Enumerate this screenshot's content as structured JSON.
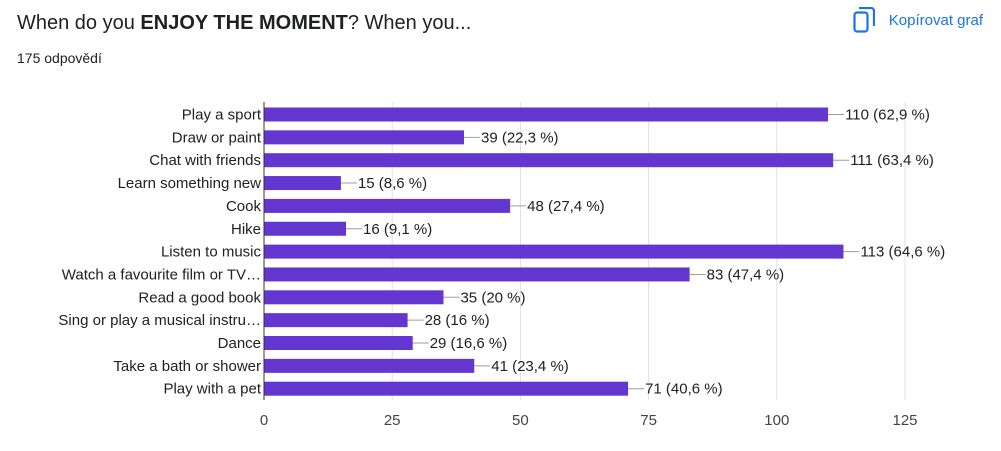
{
  "header": {
    "title_prefix": "When do you ",
    "title_bold": "ENJOY THE MOMENT",
    "title_suffix": "? When you...",
    "response_count": "175 odpovědí",
    "copy_label": "Kopírovat graf",
    "copy_icon": "copy-icon"
  },
  "colors": {
    "bar": "#6236cf",
    "accent": "#1a73e8",
    "grid": "#e0e0e0",
    "text": "#202124"
  },
  "chart_data": {
    "type": "bar",
    "orientation": "horizontal",
    "categories": [
      "Play a sport",
      "Draw or paint",
      "Chat with friends",
      "Learn something new",
      "Cook",
      "Hike",
      "Listen to music",
      "Watch a favourite film or TV…",
      "Read a good book",
      "Sing or play a musical instru…",
      "Dance",
      "Take a bath or shower",
      "Play with a pet"
    ],
    "values": [
      110,
      39,
      111,
      15,
      48,
      16,
      113,
      83,
      35,
      28,
      29,
      41,
      71
    ],
    "value_labels": [
      "110 (62,9 %)",
      "39 (22,3 %)",
      "111 (63,4 %)",
      "15 (8,6 %)",
      "48 (27,4 %)",
      "16 (9,1 %)",
      "113 (64,6 %)",
      "83 (47,4 %)",
      "35 (20 %)",
      "28 (16 %)",
      "29 (16,6 %)",
      "41 (23,4 %)",
      "71 (40,6 %)"
    ],
    "xlim": [
      0,
      125
    ],
    "xticks": [
      0,
      25,
      50,
      75,
      100,
      125
    ],
    "xtick_labels": [
      "0",
      "25",
      "50",
      "75",
      "100",
      "125"
    ],
    "grid": true
  }
}
